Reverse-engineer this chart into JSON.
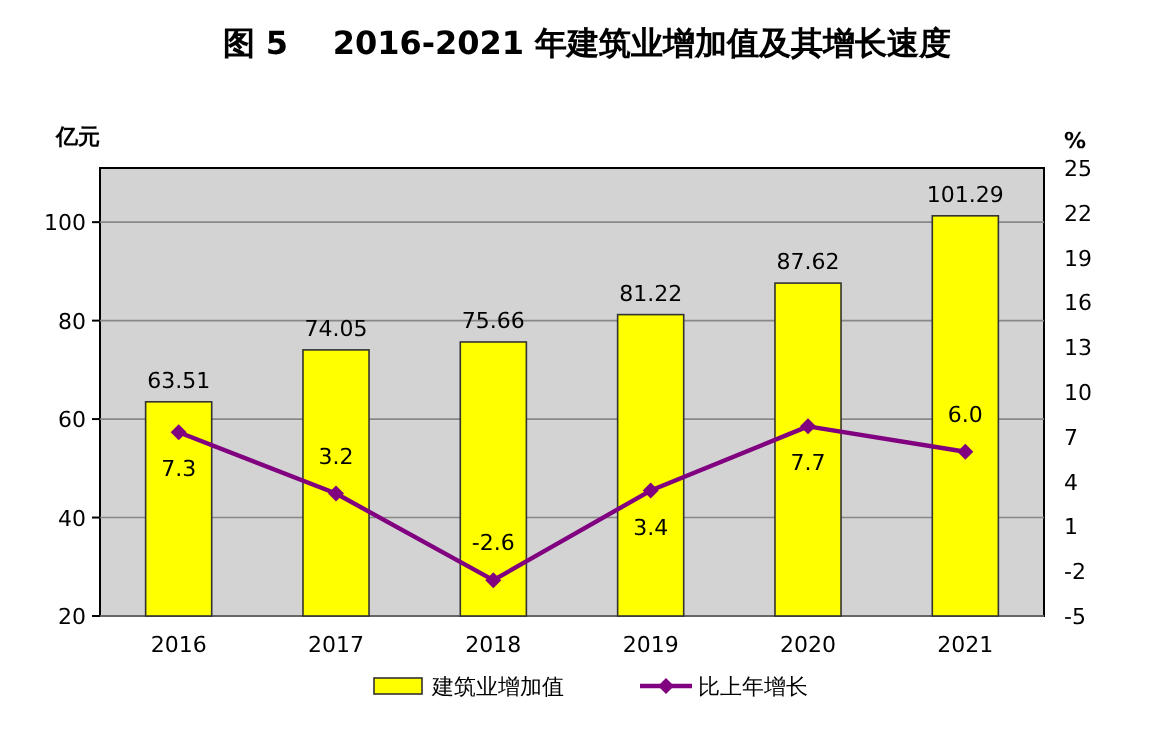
{
  "chart_data": {
    "type": "bar",
    "title": "图 5    2016-2021 年建筑业增加值及其增长速度",
    "ylabel": "亿元",
    "y2label": "%",
    "categories": [
      "2016",
      "2017",
      "2018",
      "2019",
      "2020",
      "2021"
    ],
    "series": [
      {
        "name": "建筑业增加值",
        "color": "#ffff00",
        "values": [
          63.51,
          74.05,
          75.66,
          81.22,
          87.62,
          101.29
        ]
      },
      {
        "name": "比上年增长",
        "type": "line",
        "axis": "y2",
        "color": "#800080",
        "marker": "diamond",
        "values": [
          7.3,
          3.2,
          -2.6,
          3.4,
          7.7,
          6.0
        ],
        "value_labels": [
          "7.3",
          "3.2",
          "-2.6",
          "3.4",
          "7.7",
          "6.0"
        ]
      }
    ],
    "data_labels": true,
    "ylim": [
      20,
      111
    ],
    "yticks": [
      20,
      40,
      60,
      80,
      100
    ],
    "y2lim": [
      -5,
      25
    ],
    "y2ticks": [
      -5,
      -2,
      1,
      4,
      7,
      10,
      13,
      16,
      19,
      22,
      25
    ],
    "grid": "y",
    "legend": "bottom"
  }
}
